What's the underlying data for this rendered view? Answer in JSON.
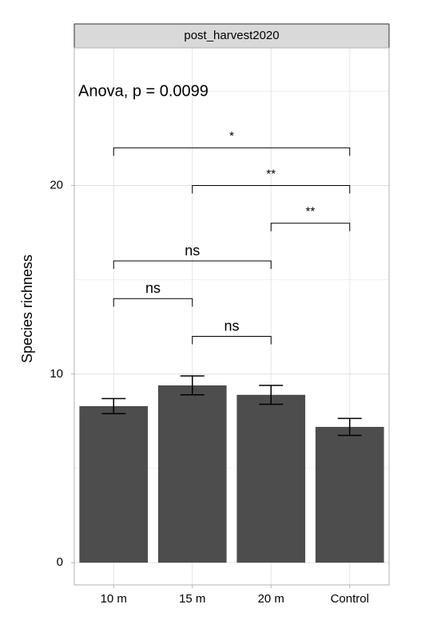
{
  "chart_data": {
    "type": "bar",
    "facet_label": "post_harvest2020",
    "annotation": "Anova, p = 0.0099",
    "y_label": "Species richness",
    "categories": [
      "10 m",
      "15 m",
      "20 m",
      "Control"
    ],
    "values": [
      8.3,
      9.4,
      8.9,
      7.2
    ],
    "errors": [
      0.4,
      0.5,
      0.5,
      0.45
    ],
    "color": "#4d4d4d",
    "ylim": [
      -1.18,
      27.3
    ],
    "yticks": [
      0,
      10,
      20
    ],
    "minor_yticks": [
      5,
      15,
      25
    ],
    "grid": true,
    "comparisons": [
      {
        "groups": [
          "10 m",
          "Control"
        ],
        "y": 22,
        "label": "*"
      },
      {
        "groups": [
          "15 m",
          "Control"
        ],
        "y": 20,
        "label": "**"
      },
      {
        "groups": [
          "20 m",
          "Control"
        ],
        "y": 18,
        "label": "**"
      },
      {
        "groups": [
          "10 m",
          "20 m"
        ],
        "y": 16,
        "label": "ns"
      },
      {
        "groups": [
          "10 m",
          "15 m"
        ],
        "y": 14,
        "label": "ns"
      },
      {
        "groups": [
          "15 m",
          "20 m"
        ],
        "y": 12,
        "label": "ns"
      }
    ]
  }
}
